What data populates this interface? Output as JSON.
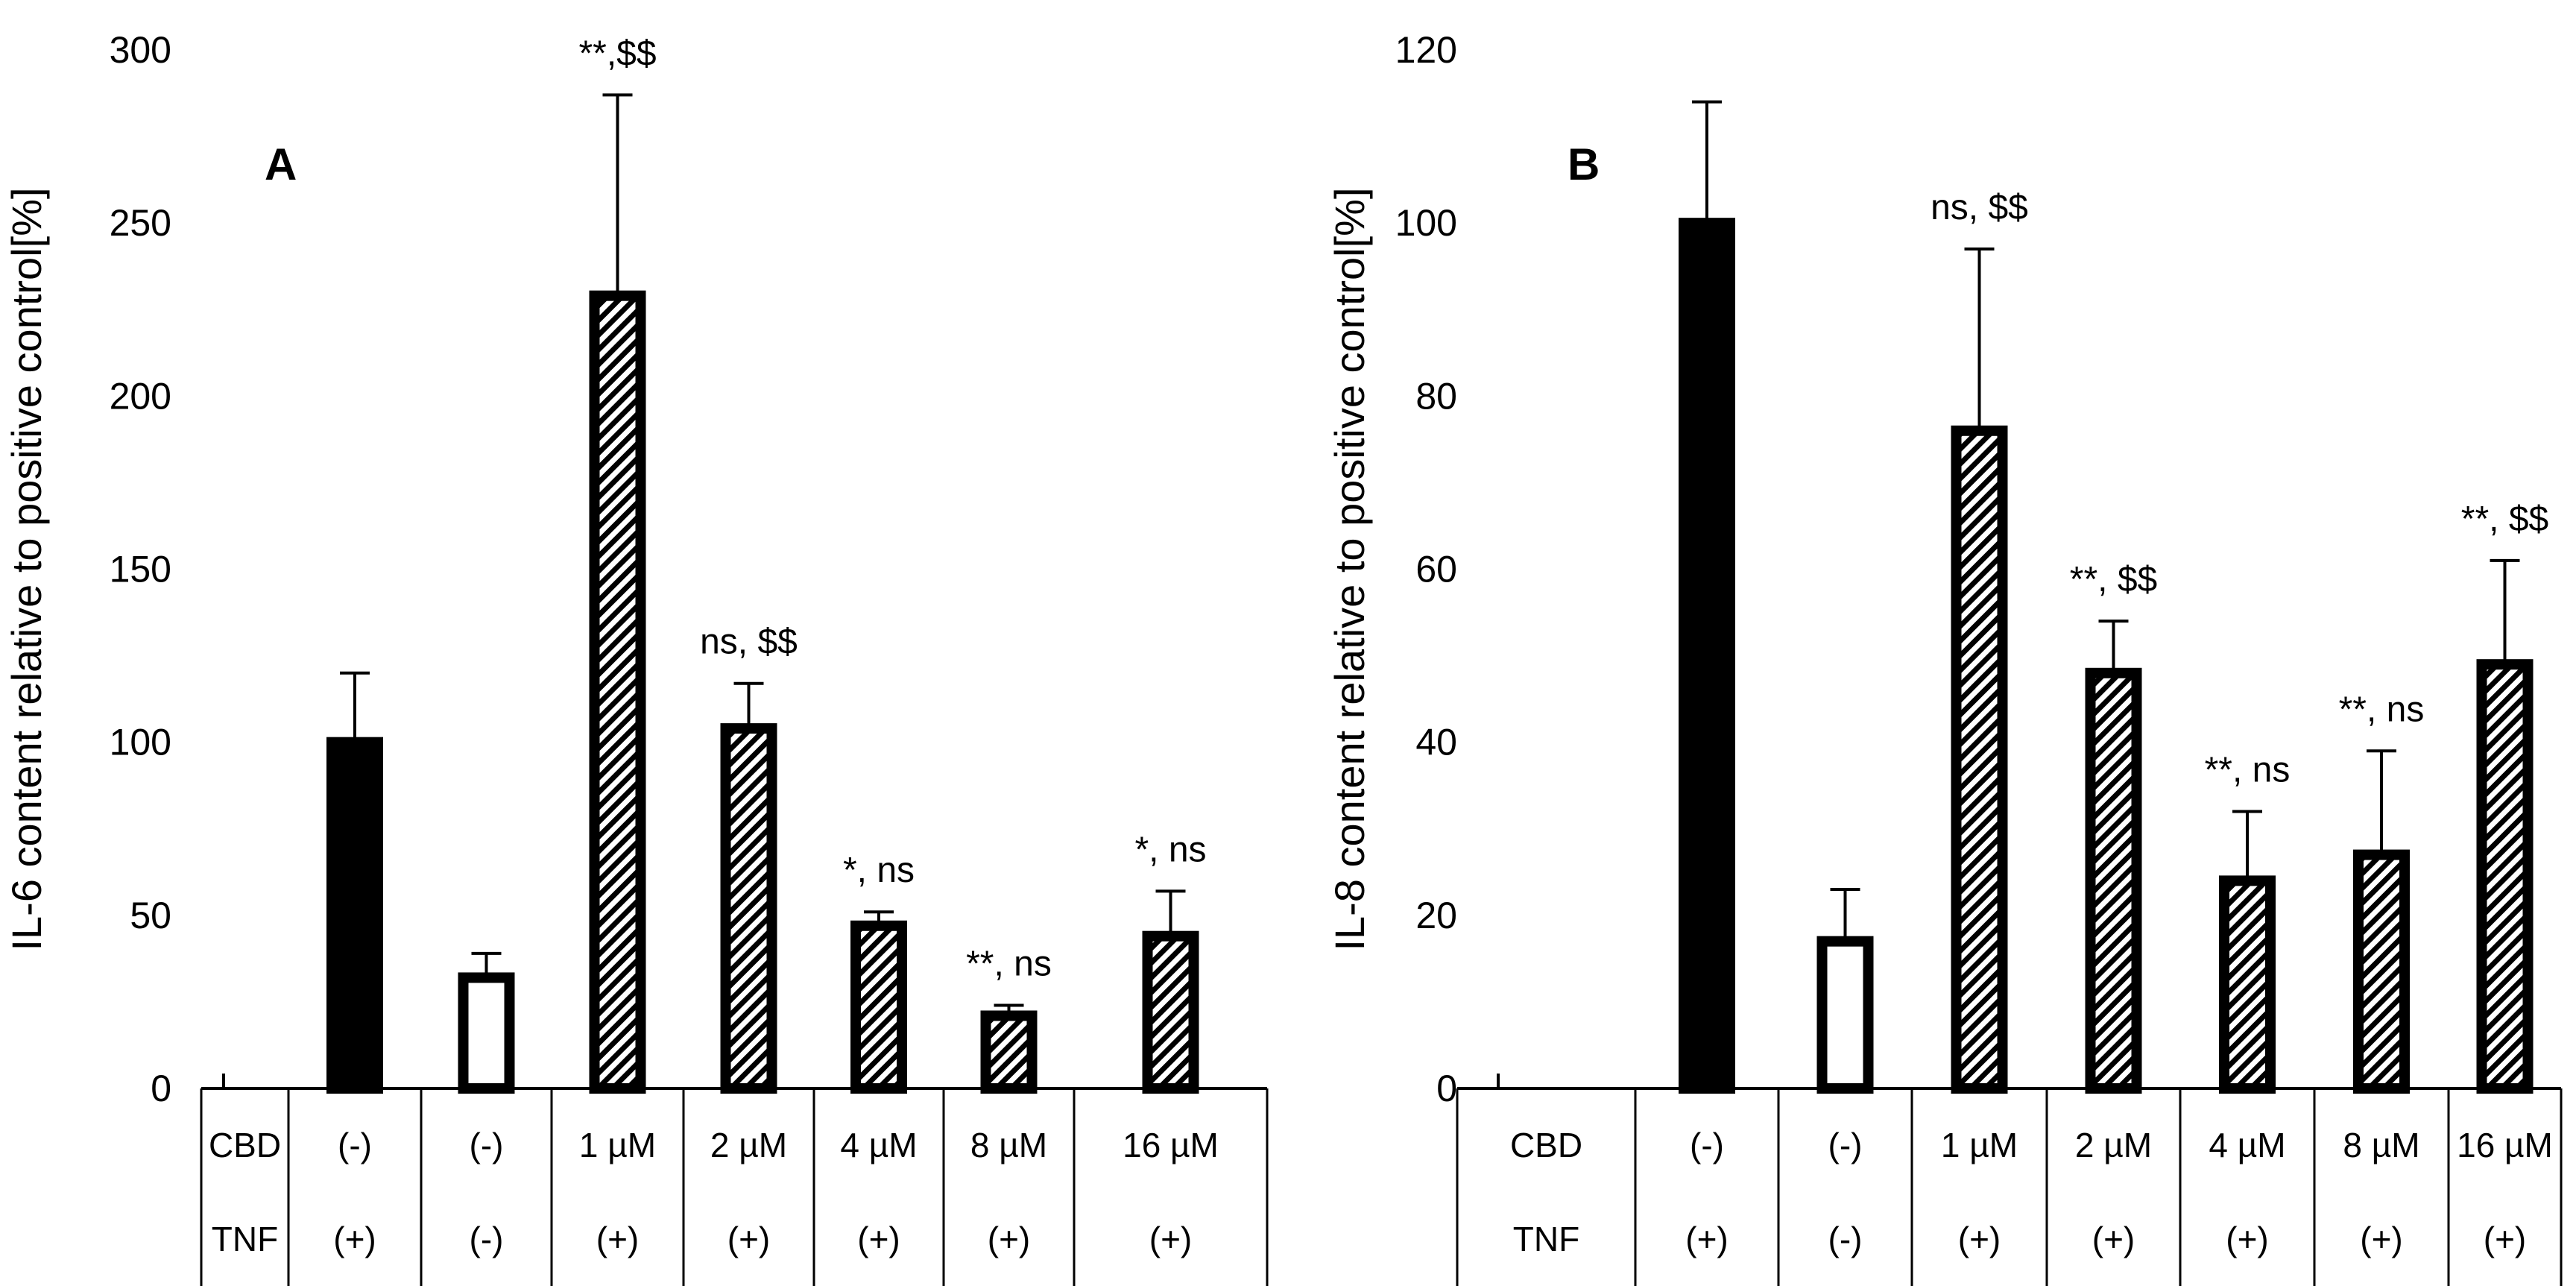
{
  "chart_data": [
    {
      "type": "bar",
      "panel_label": "A",
      "ylabel": "IL-6 content relative to positive control[%]",
      "ylim": [
        0,
        300
      ],
      "yticks": [
        "0",
        "50",
        "100",
        "150",
        "200",
        "250",
        "300"
      ],
      "row_labels": [
        "CBD",
        "TNF"
      ],
      "categories_cbd": [
        "(-)",
        "(-)",
        "1 µM",
        "2 µM",
        "4 µM",
        "8 µM",
        "16 µM"
      ],
      "categories_tnf": [
        "(+)",
        "(-)",
        "(+)",
        "(+)",
        "(+)",
        "(+)",
        "(+)"
      ],
      "values": [
        100,
        32,
        229,
        104,
        47,
        21,
        44
      ],
      "errors": [
        20,
        7,
        58,
        13,
        4,
        3,
        13
      ],
      "fills": [
        "solid",
        "open",
        "hatched",
        "hatched",
        "hatched",
        "hatched",
        "hatched"
      ],
      "annotations": [
        "",
        "",
        "**,$$",
        "ns, $$",
        "*, ns",
        "**, ns",
        "*, ns"
      ]
    },
    {
      "type": "bar",
      "panel_label": "B",
      "ylabel": "IL-8 content relative to positive control[%]",
      "ylim": [
        0,
        120
      ],
      "yticks": [
        "0",
        "20",
        "40",
        "60",
        "80",
        "100",
        "120"
      ],
      "row_labels": [
        "CBD",
        "TNF"
      ],
      "categories_cbd": [
        "(-)",
        "(-)",
        "1 µM",
        "2 µM",
        "4 µM",
        "8 µM",
        "16 µM"
      ],
      "categories_tnf": [
        "(+)",
        "(-)",
        "(+)",
        "(+)",
        "(+)",
        "(+)",
        "(+)"
      ],
      "values": [
        100,
        17,
        76,
        48,
        24,
        27,
        49
      ],
      "errors": [
        14,
        6,
        21,
        6,
        8,
        12,
        12
      ],
      "fills": [
        "solid",
        "open",
        "hatched",
        "hatched",
        "hatched",
        "hatched",
        "hatched"
      ],
      "annotations": [
        "",
        "",
        "ns, $$",
        "**, $$",
        "**, ns",
        "**, ns",
        "**, $$"
      ]
    }
  ],
  "colors": {
    "bar": "#000000",
    "axis": "#000000",
    "background": "#ffffff"
  }
}
